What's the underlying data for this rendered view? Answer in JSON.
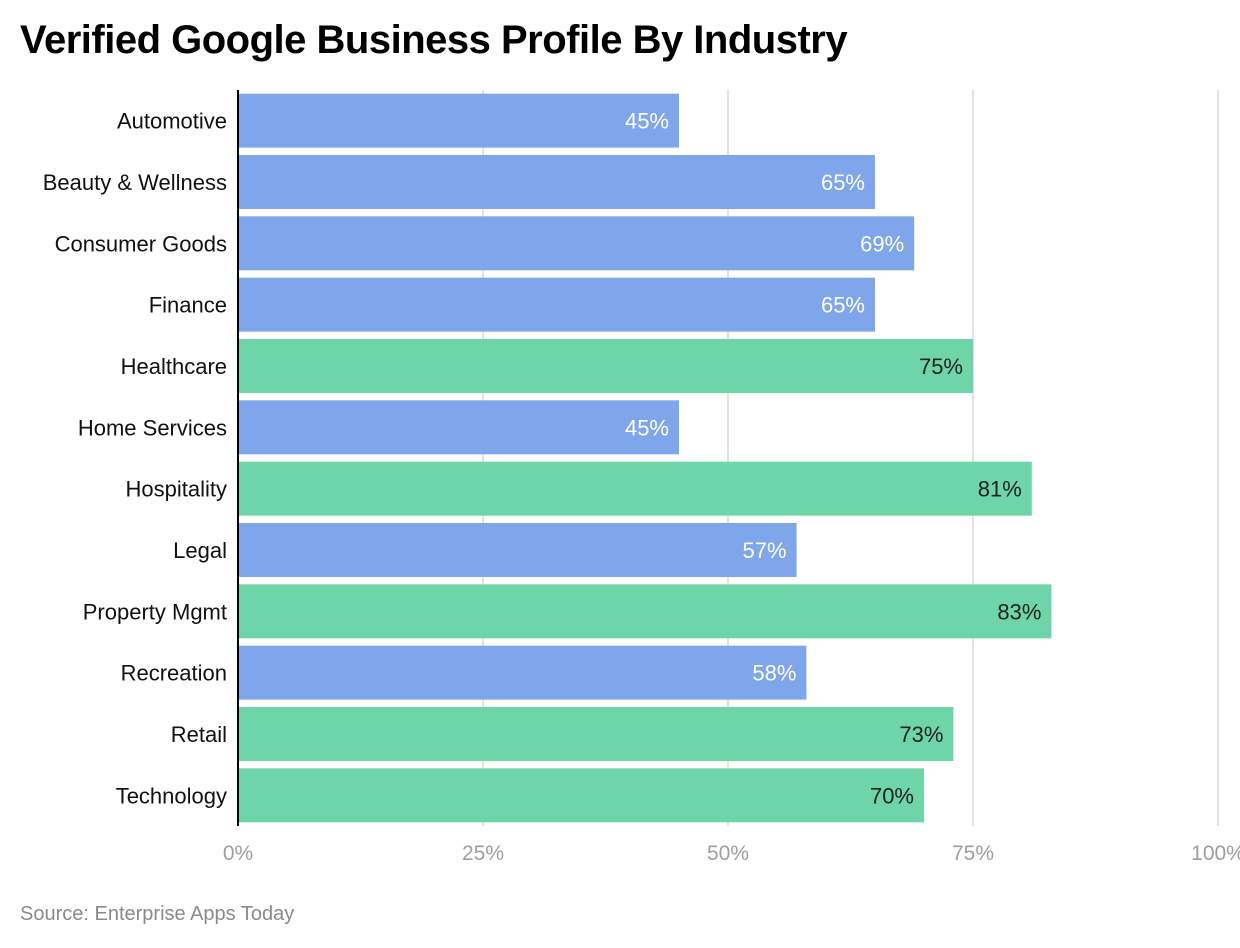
{
  "title": "Verified Google Business Profile By Industry",
  "source": "Source: Enterprise Apps Today",
  "colors": {
    "blue": "#7fa6ea",
    "green": "#6dd5a8",
    "grid": "#e3e3e3",
    "axis": "#000000",
    "tick_text": "#9e9e9e",
    "label_text": "#111111",
    "value_on_blue": "#ffffff",
    "value_on_green": "#222222"
  },
  "chart_data": {
    "type": "bar",
    "orientation": "horizontal",
    "title": "Verified Google Business Profile By Industry",
    "xlabel": "",
    "ylabel": "",
    "xlim": [
      0,
      100
    ],
    "x_ticks": [
      "0%",
      "25%",
      "50%",
      "75%",
      "100%"
    ],
    "x_tick_values": [
      0,
      25,
      50,
      75,
      100
    ],
    "grid": true,
    "categories": [
      "Automotive",
      "Beauty & Wellness",
      "Consumer Goods",
      "Finance",
      "Healthcare",
      "Home Services",
      "Hospitality",
      "Legal",
      "Property Mgmt",
      "Recreation",
      "Retail",
      "Technology"
    ],
    "values": [
      45,
      65,
      69,
      65,
      75,
      45,
      81,
      57,
      83,
      58,
      73,
      70
    ],
    "labels": [
      "45%",
      "65%",
      "69%",
      "65%",
      "75%",
      "45%",
      "81%",
      "57%",
      "83%",
      "58%",
      "73%",
      "70%"
    ],
    "bar_colors": [
      "blue",
      "blue",
      "blue",
      "blue",
      "green",
      "blue",
      "green",
      "blue",
      "green",
      "blue",
      "green",
      "green"
    ]
  }
}
